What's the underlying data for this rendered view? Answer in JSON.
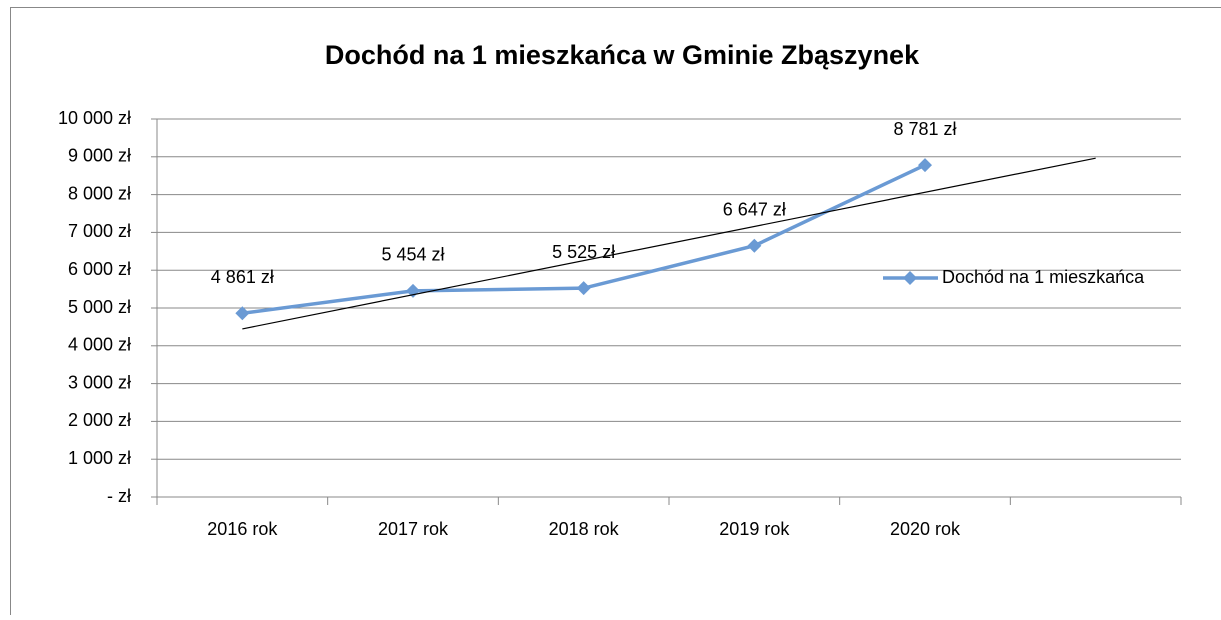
{
  "chart_data": {
    "type": "line",
    "title": "Dochód na 1 mieszkańca w Gminie Zbąszynek",
    "categories": [
      "2016 rok",
      "2017 rok",
      "2018 rok",
      "2019 rok",
      "2020 rok",
      null
    ],
    "series": [
      {
        "name": "Dochód na 1 mieszkańca",
        "color": "#6a9ad4",
        "values": [
          4861,
          5454,
          5525,
          6647,
          8781,
          null
        ],
        "value_labels": [
          "4 861 zł",
          "5 454 zł",
          "5 525 zł",
          "6 647 zł",
          "8 781 zł",
          null
        ]
      }
    ],
    "ylim": [
      0,
      10000
    ],
    "yticks": [
      {
        "value": 0,
        "label": "-   zł"
      },
      {
        "value": 1000,
        "label": "1 000 zł"
      },
      {
        "value": 2000,
        "label": "2 000 zł"
      },
      {
        "value": 3000,
        "label": "3 000 zł"
      },
      {
        "value": 4000,
        "label": "4 000 zł"
      },
      {
        "value": 5000,
        "label": "5 000 zł"
      },
      {
        "value": 6000,
        "label": "6 000 zł"
      },
      {
        "value": 7000,
        "label": "7 000 zł"
      },
      {
        "value": 8000,
        "label": "8 000 zł"
      },
      {
        "value": 9000,
        "label": "9 000 zł"
      },
      {
        "value": 10000,
        "label": "10 000 zł"
      }
    ],
    "grid": true,
    "trendline": true,
    "trendline_color": "#000000",
    "legend": "right"
  }
}
